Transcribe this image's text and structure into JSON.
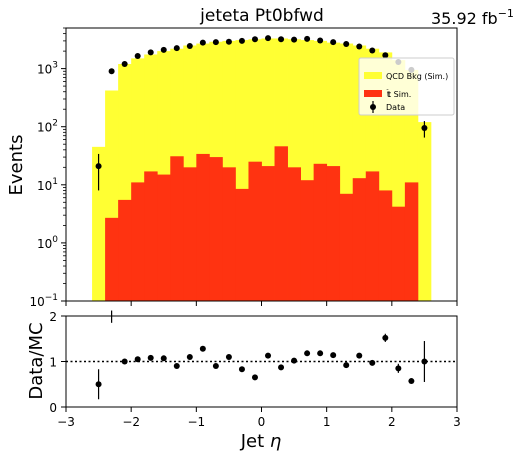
{
  "chart_data": [
    {
      "type": "bar",
      "role": "main",
      "title": "jeteta  Pt0bfwd",
      "lumi_label": "35.92 fb",
      "lumi_exponent": "−1",
      "ylabel": "Events",
      "yscale": "log",
      "xlim": [
        -3,
        3
      ],
      "ylim": [
        0.1,
        5000
      ],
      "x_ticks": [
        -3,
        -2,
        -1,
        0,
        1,
        2,
        3
      ],
      "y_ticks": [
        {
          "value": 0.1,
          "base": "10",
          "exp": "−1"
        },
        {
          "value": 1,
          "base": "10",
          "exp": "0"
        },
        {
          "value": 10,
          "base": "10",
          "exp": "1"
        },
        {
          "value": 100,
          "base": "10",
          "exp": "2"
        },
        {
          "value": 1000,
          "base": "10",
          "exp": "3"
        }
      ],
      "bin_edges": [
        -2.6,
        -2.4,
        -2.2,
        -2.0,
        -1.8,
        -1.6,
        -1.4,
        -1.2,
        -1.0,
        -0.8,
        -0.6,
        -0.4,
        -0.2,
        0.0,
        0.2,
        0.4,
        0.6,
        0.8,
        1.0,
        1.2,
        1.4,
        1.6,
        1.8,
        2.0,
        2.2,
        2.4,
        2.6
      ],
      "series": [
        {
          "name": "QCD Bkg (Sim.)",
          "color": "#ffff33",
          "values": [
            45,
            420,
            1200,
            1500,
            1750,
            2000,
            2200,
            2500,
            2700,
            2900,
            3000,
            3100,
            3200,
            3300,
            3300,
            3200,
            3100,
            3000,
            2800,
            2700,
            2500,
            2200,
            1900,
            1400,
            950,
            120
          ]
        },
        {
          "name": "t̄t Sim.",
          "name_main": "t",
          "name_bar": "t",
          "name_rest": " Sim.",
          "color": "#ff3311",
          "values": [
            0,
            2.7,
            5.5,
            11,
            17,
            15,
            31,
            20,
            34,
            30,
            20,
            8.5,
            25,
            21,
            46,
            20,
            12,
            23,
            21,
            7,
            13,
            17,
            8,
            4.2,
            11,
            0
          ]
        },
        {
          "name": "Data",
          "color": "#000000",
          "x": [
            -2.5,
            -2.3,
            -2.1,
            -1.9,
            -1.7,
            -1.5,
            -1.3,
            -1.1,
            -0.9,
            -0.7,
            -0.5,
            -0.3,
            -0.1,
            0.1,
            0.3,
            0.5,
            0.7,
            0.9,
            1.1,
            1.3,
            1.5,
            1.7,
            1.9,
            2.1,
            2.3,
            2.5
          ],
          "values": [
            21,
            900,
            1200,
            1650,
            1900,
            2100,
            2250,
            2450,
            2800,
            2850,
            2900,
            3000,
            3200,
            3350,
            3200,
            3150,
            3250,
            3050,
            2850,
            2650,
            2400,
            2050,
            1700,
            1300,
            950,
            95
          ],
          "err_low": [
            13,
            40,
            45,
            50,
            55,
            60,
            62,
            65,
            70,
            70,
            72,
            72,
            75,
            75,
            75,
            74,
            75,
            73,
            70,
            68,
            65,
            60,
            55,
            48,
            40,
            30
          ],
          "err_high": [
            13,
            40,
            45,
            50,
            55,
            60,
            62,
            65,
            70,
            70,
            72,
            72,
            75,
            75,
            75,
            74,
            75,
            73,
            70,
            68,
            65,
            60,
            55,
            48,
            40,
            30
          ]
        }
      ],
      "legend_position": "upper-right"
    },
    {
      "type": "scatter",
      "role": "ratio",
      "xlabel": "Jet η",
      "xlabel_main": "Jet ",
      "xlabel_symbol": "η",
      "ylabel": "Data/MC",
      "xlim": [
        -3,
        3
      ],
      "ylim": [
        0,
        2
      ],
      "x_ticks": [
        -3,
        -2,
        -1,
        0,
        1,
        2,
        3
      ],
      "y_ticks": [
        0,
        1,
        2
      ],
      "reference_line": 1,
      "x": [
        -2.5,
        -2.3,
        -2.1,
        -1.9,
        -1.7,
        -1.5,
        -1.3,
        -1.1,
        -0.9,
        -0.7,
        -0.5,
        -0.3,
        -0.1,
        0.1,
        0.3,
        0.5,
        0.7,
        0.9,
        1.1,
        1.3,
        1.5,
        1.7,
        1.9,
        2.1,
        2.3,
        2.5
      ],
      "values": [
        0.5,
        2.15,
        1.0,
        1.05,
        1.08,
        1.07,
        0.9,
        1.1,
        1.28,
        0.9,
        1.1,
        0.83,
        0.65,
        1.13,
        0.87,
        1.02,
        1.18,
        1.18,
        1.14,
        0.92,
        1.13,
        0.97,
        1.52,
        0.85,
        0.57,
        1.0
      ],
      "err": [
        0.33,
        0.3,
        0.04,
        0.04,
        0.04,
        0.04,
        0.04,
        0.04,
        0.05,
        0.04,
        0.04,
        0.04,
        0.04,
        0.05,
        0.04,
        0.04,
        0.05,
        0.05,
        0.05,
        0.04,
        0.04,
        0.05,
        0.09,
        0.1,
        0.05,
        0.45
      ]
    }
  ]
}
